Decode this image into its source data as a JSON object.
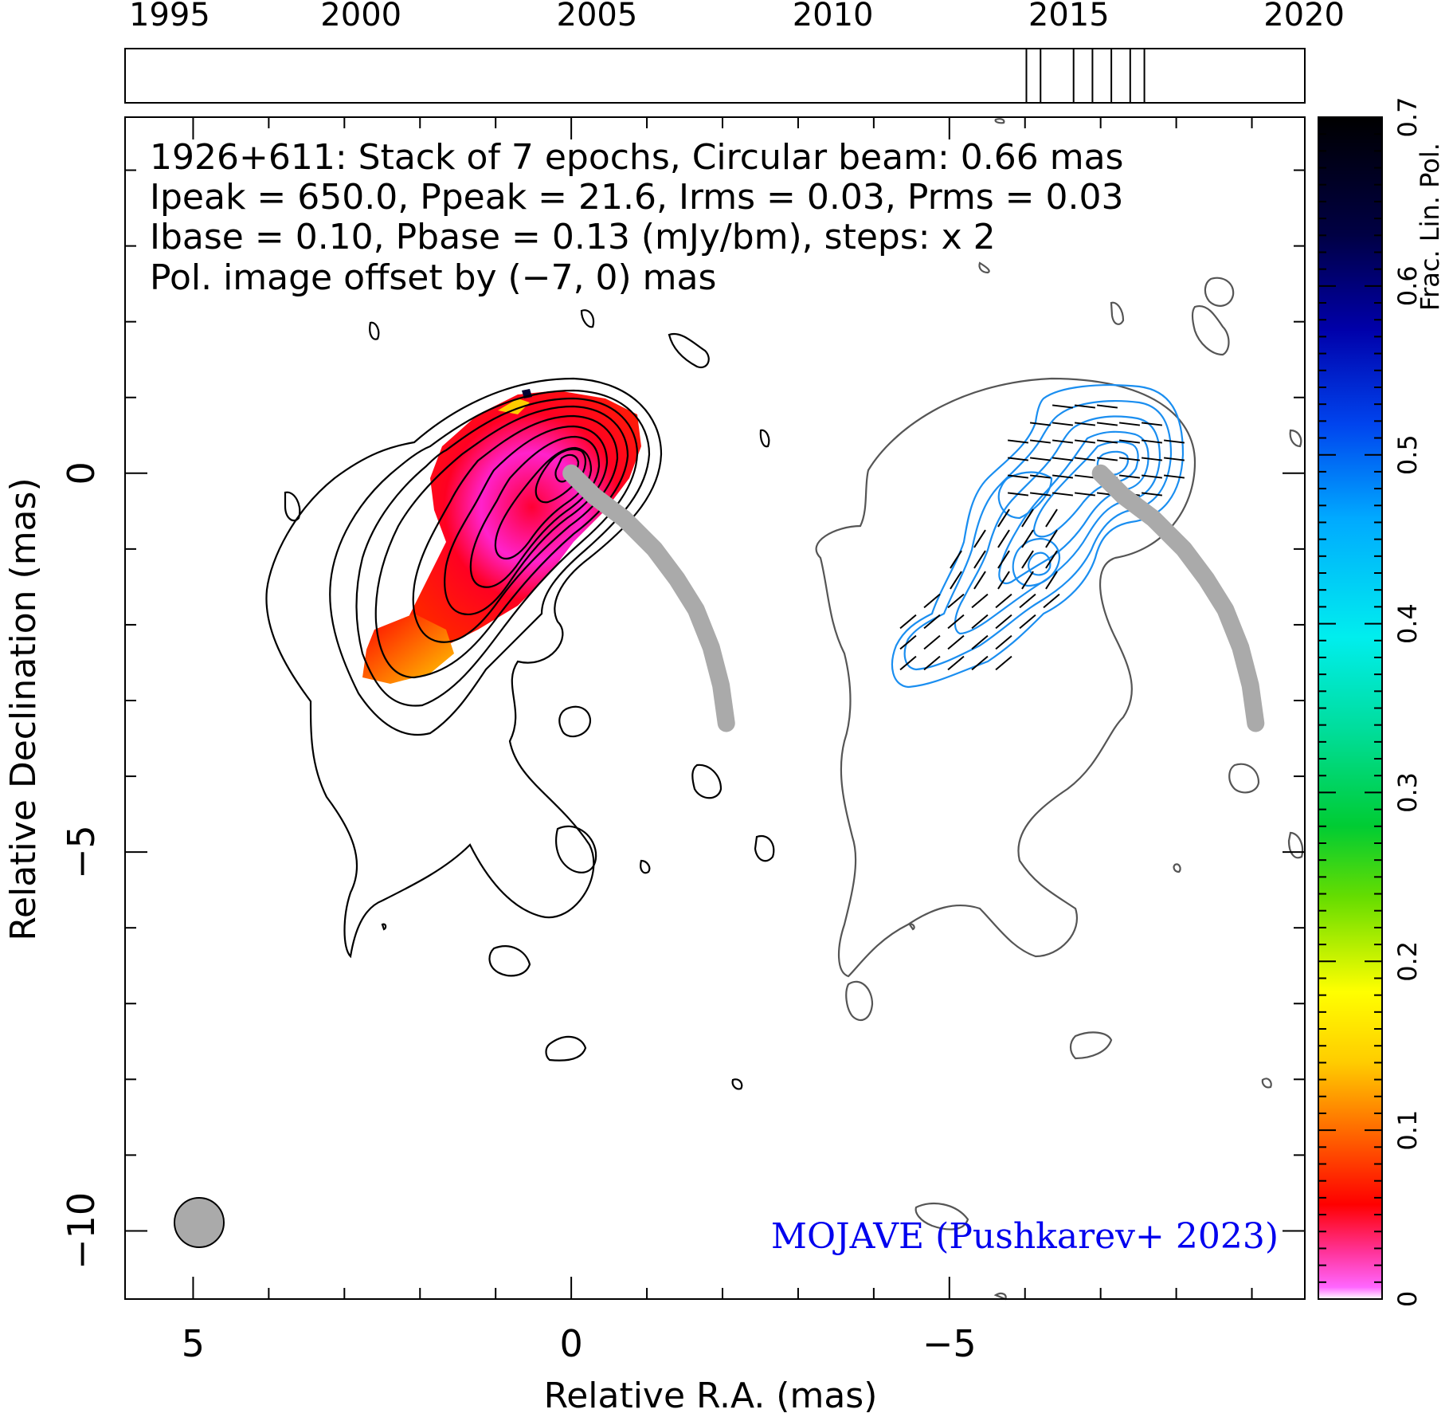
{
  "chart_data": {
    "type": "contour",
    "timeline": {
      "year_ticks": [
        "1995",
        "2000",
        "2005",
        "2010",
        "2015",
        "2020"
      ],
      "x_range": [
        1995,
        2020
      ],
      "epochs": [
        2014.1,
        2014.4,
        2015.1,
        2015.5,
        2015.9,
        2016.3,
        2016.6
      ]
    },
    "info": {
      "line1": "1926+611: Stack of 7 epochs, Circular beam: 0.66 mas",
      "line2": "Ipeak = 650.0, Ppeak = 21.6, Irms = 0.03, Prms = 0.03",
      "line3": "Ibase = 0.10, Pbase = 0.13 (mJy/bm), steps: x 2",
      "line4": "Pol. image offset by (−7, 0) mas",
      "line4_color": "#1a8ef0"
    },
    "credit": "MOJAVE (Pushkarev+ 2023)",
    "xlabel": "Relative R.A. (mas)",
    "ylabel": "Relative Declination (mas)",
    "xlim": [
      5.9,
      -9.7
    ],
    "ylim": [
      -10.9,
      4.7
    ],
    "x_ticks": [
      "5",
      "0",
      "−5"
    ],
    "y_ticks": [
      "0",
      "−5",
      "−10"
    ],
    "colorbar": {
      "label": "Frac. Lin. Pol.",
      "range": [
        0,
        0.7
      ],
      "ticks": [
        "0",
        "0.1",
        "0.2",
        "0.3",
        "0.4",
        "0.5",
        "0.6",
        "0.7"
      ]
    },
    "beam": {
      "diameter_mas": 0.66,
      "position_mas": [
        5,
        -10
      ]
    },
    "ridge_line": [
      [
        0.0,
        0.0
      ],
      [
        -0.3,
        -0.3
      ],
      [
        -0.7,
        -0.6
      ],
      [
        -1.1,
        -1.0
      ],
      [
        -1.4,
        -1.4
      ],
      [
        -1.65,
        -1.8
      ],
      [
        -1.85,
        -2.3
      ],
      [
        -1.98,
        -2.8
      ],
      [
        -2.05,
        -3.3
      ]
    ],
    "contour_colors": {
      "total_intensity": "#000000",
      "polarized_intensity": "#1a8ef0",
      "offset_intensity": "#555555"
    }
  }
}
